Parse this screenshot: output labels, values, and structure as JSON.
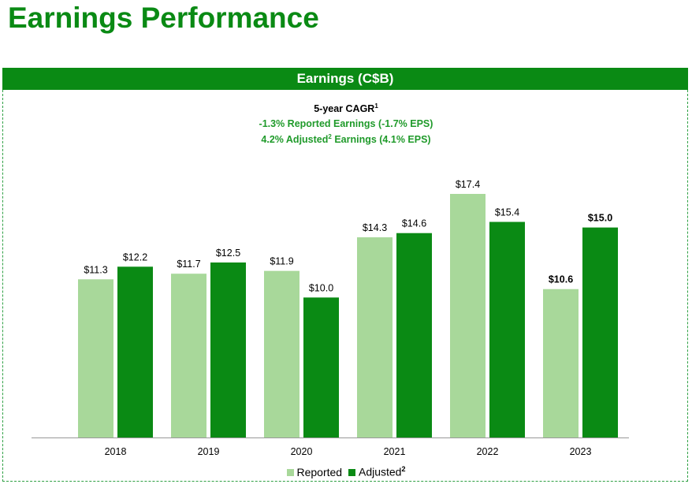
{
  "page": {
    "title": "Earnings Performance"
  },
  "panel": {
    "header": "Earnings (C$B)"
  },
  "cagr": {
    "title": "5-year CAGR",
    "title_sup": "1",
    "line1": "-1.3% Reported Earnings (-1.7% EPS)",
    "line2_a": "4.2% Adjusted",
    "line2_sup": "2",
    "line2_b": " Earnings (4.1% EPS)"
  },
  "legend": {
    "reported": "Reported",
    "adjusted": "Adjusted",
    "adjusted_sup": "2"
  },
  "colors": {
    "brand_green": "#0a8a14",
    "reported": "#a8d89a",
    "adjusted": "#0a8a14",
    "cagr_text": "#1f9a2a"
  },
  "chart_data": {
    "type": "bar",
    "title": "Earnings (C$B)",
    "categories": [
      "2018",
      "2019",
      "2020",
      "2021",
      "2022",
      "2023"
    ],
    "series": [
      {
        "name": "Reported",
        "values": [
          11.3,
          11.7,
          11.9,
          14.3,
          17.4,
          10.6
        ],
        "labels": [
          "$11.3",
          "$11.7",
          "$11.9",
          "$14.3",
          "$17.4",
          "$10.6"
        ]
      },
      {
        "name": "Adjusted",
        "values": [
          12.2,
          12.5,
          10.0,
          14.6,
          15.4,
          15.0
        ],
        "labels": [
          "$12.2",
          "$12.5",
          "$10.0",
          "$14.6",
          "$15.4",
          "$15.0"
        ]
      }
    ],
    "bold_category": "2023",
    "ylim": [
      0,
      18.3
    ],
    "grid": false,
    "legend_position": "bottom-center"
  }
}
